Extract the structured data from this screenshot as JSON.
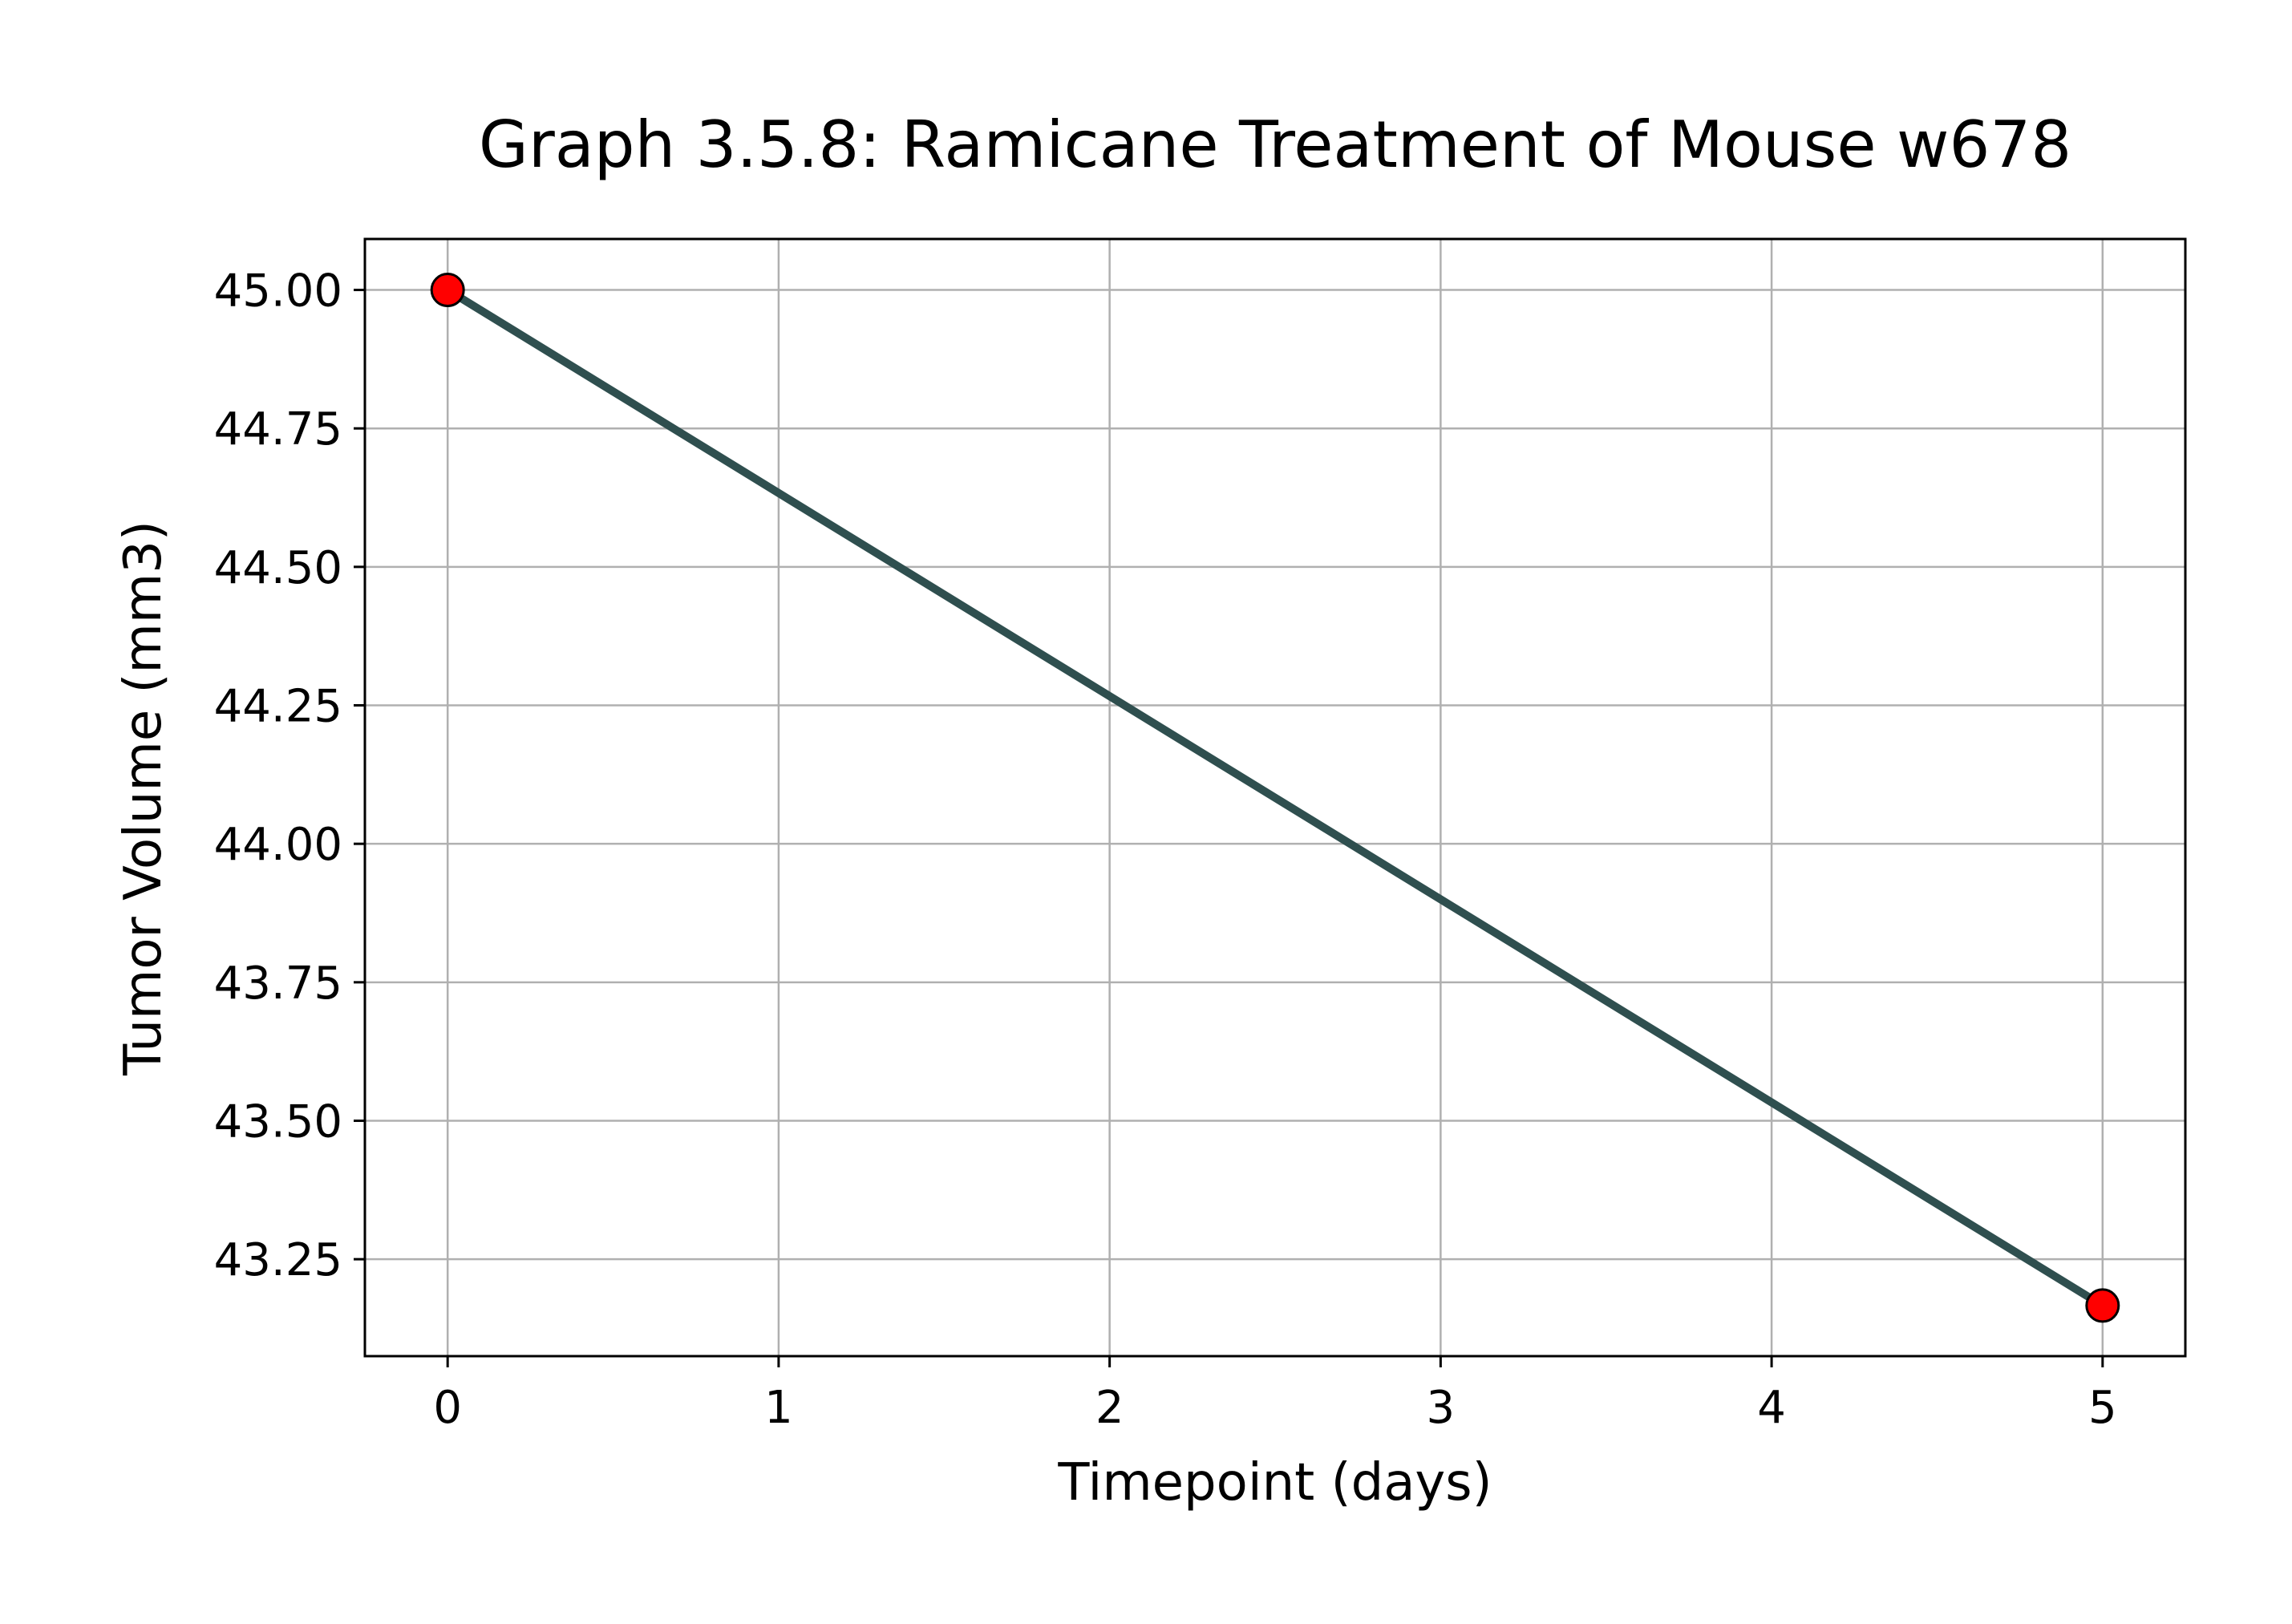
{
  "chart_data": {
    "type": "line",
    "title": "Graph 3.5.8: Ramicane Treatment of Mouse w678",
    "xlabel": "Timepoint (days)",
    "ylabel": "Tumor Volume (mm3)",
    "x": [
      0,
      5
    ],
    "series": [
      {
        "values": [
          45.0,
          43.166373
        ]
      }
    ],
    "xlim": [
      -0.25,
      5.25
    ],
    "ylim": [
      43.075,
      45.092
    ],
    "xticks": [
      0,
      1,
      2,
      3,
      4,
      5
    ],
    "xtick_labels": [
      "0",
      "1",
      "2",
      "3",
      "4",
      "5"
    ],
    "yticks": [
      43.25,
      43.5,
      43.75,
      44.0,
      44.25,
      44.5,
      44.75,
      45.0
    ],
    "ytick_labels": [
      "43.25",
      "43.50",
      "43.75",
      "44.00",
      "44.25",
      "44.50",
      "44.75",
      "45.00"
    ],
    "grid": true,
    "legend": "none",
    "colors": {
      "line": "#2f4f4f",
      "marker_fill": "#ff0000",
      "marker_edge": "#000000",
      "grid": "#b0b0b0",
      "axes": "#000000"
    }
  }
}
